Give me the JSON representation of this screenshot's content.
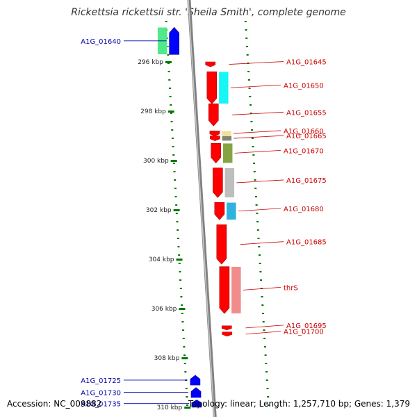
{
  "title": "Rickettsia rickettsii str. 'Sheila Smith', complete genome",
  "footer": {
    "accession": "Accession: NC_009882",
    "summary": "Topology: linear; Length: 1,257,710 bp; Genes: 1,379"
  },
  "colors": {
    "forward_gene": "#ff0000",
    "reverse_gene": "#0000ff",
    "forward_label": "#cc0000",
    "reverse_label": "#0000aa",
    "backbone": "#808080",
    "tick": "#007700"
  },
  "scale": {
    "unit": "kbp",
    "ticks": [
      {
        "kbp": 296,
        "label": "296 kbp"
      },
      {
        "kbp": 298,
        "label": "298 kbp"
      },
      {
        "kbp": 300,
        "label": "300 kbp"
      },
      {
        "kbp": 302,
        "label": "302 kbp"
      },
      {
        "kbp": 304,
        "label": "304 kbp"
      },
      {
        "kbp": 306,
        "label": "306 kbp"
      },
      {
        "kbp": 308,
        "label": "308 kbp"
      },
      {
        "kbp": 310,
        "label": "310 kbp"
      }
    ]
  },
  "genes": [
    {
      "name": "A1G_01640",
      "strand": "reverse",
      "start_kbp": 294.6,
      "end_kbp": 295.7,
      "cds_color": "#3ee87f",
      "side": "left"
    },
    {
      "name": "A1G_01645",
      "strand": "forward",
      "start_kbp": 296.0,
      "end_kbp": 296.2,
      "cds_color": null,
      "side": "right"
    },
    {
      "name": "A1G_01650",
      "strand": "forward",
      "start_kbp": 296.4,
      "end_kbp": 297.7,
      "cds_color": "#00f5f5",
      "side": "right"
    },
    {
      "name": "A1G_01655",
      "strand": "forward",
      "start_kbp": 297.7,
      "end_kbp": 298.6,
      "cds_color": null,
      "side": "right"
    },
    {
      "name": "A1G_01660",
      "strand": "forward",
      "start_kbp": 298.8,
      "end_kbp": 299.0,
      "cds_color": "#f2dc8a",
      "side": "right"
    },
    {
      "name": "A1G_01665",
      "strand": "forward",
      "start_kbp": 299.0,
      "end_kbp": 299.2,
      "cds_color": "#777766",
      "side": "right"
    },
    {
      "name": "A1G_01670",
      "strand": "forward",
      "start_kbp": 299.3,
      "end_kbp": 300.1,
      "cds_color": "#7a9a2f",
      "side": "right"
    },
    {
      "name": "A1G_01675",
      "strand": "forward",
      "start_kbp": 300.3,
      "end_kbp": 301.5,
      "cds_color": "#b8b8b8",
      "side": "right"
    },
    {
      "name": "A1G_01680",
      "strand": "forward",
      "start_kbp": 301.7,
      "end_kbp": 302.4,
      "cds_color": "#1aaadd",
      "side": "right"
    },
    {
      "name": "A1G_01685",
      "strand": "forward",
      "start_kbp": 302.6,
      "end_kbp": 304.2,
      "cds_color": null,
      "side": "right"
    },
    {
      "name": "thrS",
      "strand": "forward",
      "start_kbp": 304.3,
      "end_kbp": 306.2,
      "cds_color": "#f08080",
      "side": "right"
    },
    {
      "name": "A1G_01695",
      "strand": "forward",
      "start_kbp": 306.7,
      "end_kbp": 306.85,
      "cds_color": null,
      "side": "right"
    },
    {
      "name": "A1G_01700",
      "strand": "forward",
      "start_kbp": 306.95,
      "end_kbp": 307.1,
      "cds_color": null,
      "side": "right"
    },
    {
      "name": "A1G_01725",
      "strand": "reverse",
      "start_kbp": 308.7,
      "end_kbp": 309.1,
      "cds_color": null,
      "side": "left"
    },
    {
      "name": "A1G_01730",
      "strand": "reverse",
      "start_kbp": 309.2,
      "end_kbp": 309.6,
      "cds_color": null,
      "side": "left"
    },
    {
      "name": "A1G_01735",
      "strand": "reverse",
      "start_kbp": 309.7,
      "end_kbp": 310.0,
      "cds_color": null,
      "side": "left"
    }
  ]
}
